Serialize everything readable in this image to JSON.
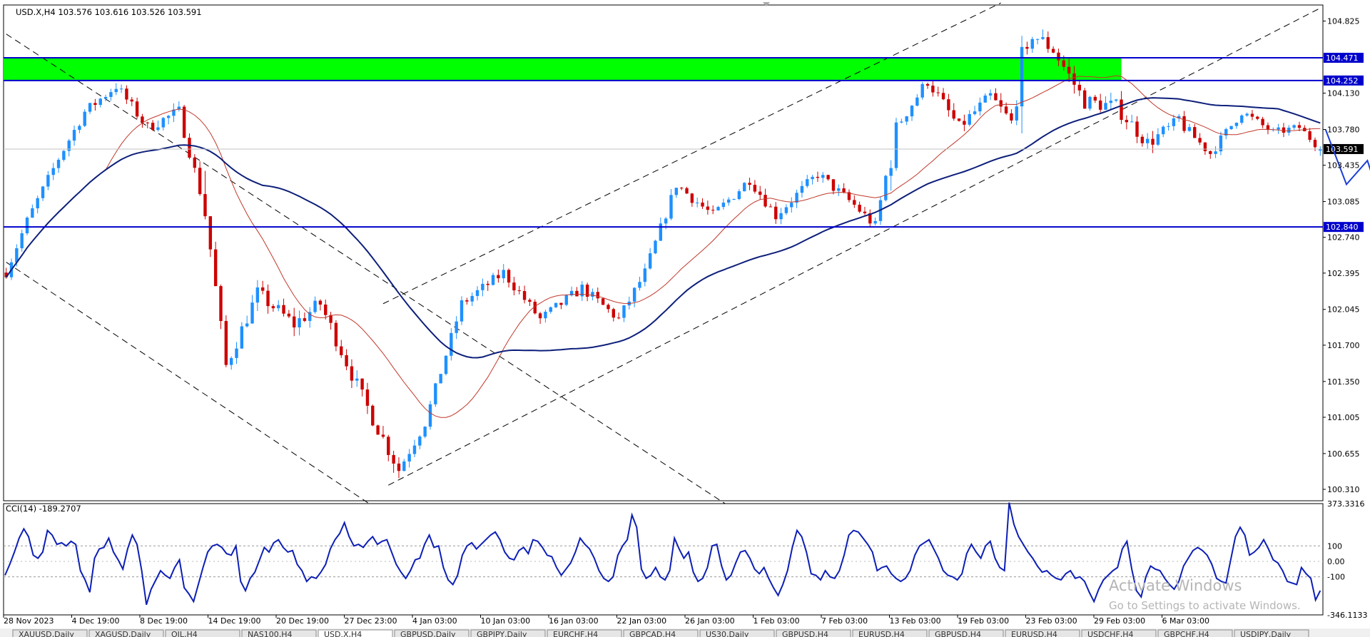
{
  "header": {
    "symbol_line": "USD.X,H4  103.576 103.616 103.526 103.591",
    "cci_label": "CCI(14) -189.2707"
  },
  "colors": {
    "bull": "#1e90ff",
    "bear": "#cc0000",
    "ma_fast": "#c0392b",
    "ma_slow": "#0d1f7a",
    "zone": "#00ff00",
    "level_line": "#0000cc",
    "cci": "#0d1fb5",
    "channel": "#000000"
  },
  "watermark": {
    "line1": "Activate Windows",
    "line2": "Go to Settings to activate Windows."
  },
  "tabs": [
    "XAUUSD,Daily",
    "XAGUSD,Daily",
    "OIL,H4",
    "NAS100,H4",
    "USD.X,H4",
    "GBPUSD,Daily",
    "GBPJPY,Daily",
    "EURCHF,H4",
    "GBPCAD,H4",
    "US30,Daily",
    "GBPUSD,H4",
    "EURUSD,H4",
    "GBPUSD,H4",
    "EURUSD,H4",
    "USDCHF,H4",
    "GBPCHF,H4",
    "USDJPY,Daily"
  ],
  "active_tab": 4,
  "chart_data": [
    {
      "type": "candlestick",
      "symbol": "USD.X",
      "timeframe": "H4",
      "ohlc_current": {
        "open": 103.576,
        "high": 103.616,
        "low": 103.526,
        "close": 103.591
      },
      "ylim": [
        100.2,
        104.98
      ],
      "y_ticks": [
        "104.825",
        "104.130",
        "103.780",
        "103.435",
        "103.085",
        "102.740",
        "102.395",
        "102.045",
        "101.700",
        "101.350",
        "101.005",
        "100.655",
        "100.310"
      ],
      "x_ticks": [
        "28 Nov 2023",
        "4 Dec 19:00",
        "8 Dec 19:00",
        "14 Dec 19:00",
        "20 Dec 19:00",
        "27 Dec 23:00",
        "4 Jan 03:00",
        "10 Jan 03:00",
        "16 Jan 03:00",
        "22 Jan 03:00",
        "26 Jan 03:00",
        "1 Feb 03:00",
        "7 Feb 03:00",
        "13 Feb 03:00",
        "19 Feb 03:00",
        "23 Feb 03:00",
        "29 Feb 03:00",
        "6 Mar 03:00"
      ],
      "price_path": [
        [
          0,
          102.4
        ],
        [
          4,
          102.9
        ],
        [
          10,
          103.5
        ],
        [
          15,
          103.95
        ],
        [
          21,
          104.2
        ],
        [
          27,
          103.8
        ],
        [
          33,
          103.95
        ],
        [
          38,
          103.0
        ],
        [
          42,
          101.5
        ],
        [
          48,
          102.2
        ],
        [
          55,
          101.9
        ],
        [
          60,
          102.1
        ],
        [
          68,
          101.2
        ],
        [
          75,
          100.5
        ],
        [
          80,
          100.95
        ],
        [
          87,
          102.1
        ],
        [
          95,
          102.4
        ],
        [
          102,
          101.95
        ],
        [
          110,
          102.25
        ],
        [
          117,
          101.95
        ],
        [
          122,
          102.4
        ],
        [
          128,
          103.25
        ],
        [
          135,
          102.95
        ],
        [
          142,
          103.3
        ],
        [
          147,
          102.95
        ],
        [
          155,
          103.35
        ],
        [
          162,
          103.05
        ],
        [
          166,
          102.85
        ],
        [
          170,
          103.8
        ],
        [
          176,
          104.25
        ],
        [
          182,
          103.8
        ],
        [
          188,
          104.1
        ],
        [
          192,
          103.85
        ],
        [
          196,
          104.7
        ],
        [
          200,
          104.55
        ],
        [
          206,
          104.05
        ],
        [
          212,
          104.0
        ],
        [
          218,
          103.65
        ],
        [
          224,
          103.85
        ],
        [
          230,
          103.55
        ],
        [
          236,
          103.95
        ],
        [
          242,
          103.75
        ],
        [
          247,
          103.8
        ],
        [
          251,
          103.591
        ]
      ],
      "volatility": [
        [
          0,
          0.1
        ],
        [
          37,
          0.14
        ],
        [
          38,
          0.5
        ],
        [
          39,
          0.16
        ],
        [
          75,
          0.18
        ],
        [
          76,
          0.12
        ],
        [
          168,
          0.12
        ],
        [
          169,
          0.45
        ],
        [
          170,
          0.14
        ],
        [
          193,
          0.14
        ],
        [
          194,
          0.7
        ],
        [
          195,
          0.18
        ],
        [
          223,
          0.16
        ],
        [
          224,
          0.4
        ],
        [
          225,
          0.12
        ],
        [
          251,
          0.08
        ]
      ],
      "series": [
        {
          "name": "",
          "type": "ma",
          "color_key": "ma_fast",
          "period": 20
        },
        {
          "name": "",
          "type": "ma",
          "color_key": "ma_slow",
          "period": 50
        }
      ],
      "levels": [
        {
          "label": "104.471",
          "value": 104.471
        },
        {
          "label": "104.252",
          "value": 104.252
        },
        {
          "label": "102.840",
          "value": 102.84
        }
      ],
      "zone": {
        "from": 104.252,
        "to": 104.471,
        "end_bar": 213
      },
      "current_price_label": "103.591",
      "channels": [
        {
          "from": [
            0,
            104.7
          ],
          "to": [
            138,
            100.15
          ]
        },
        {
          "from": [
            0,
            102.5
          ],
          "to": [
            70,
            100.15
          ]
        },
        {
          "from": [
            72,
            102.1
          ],
          "to": [
            190,
            105.0
          ]
        },
        {
          "from": [
            73,
            100.35
          ],
          "to": [
            251,
            104.95
          ]
        }
      ],
      "projection": [
        [
          252,
          103.78
        ],
        [
          256,
          103.25
        ],
        [
          260,
          103.48
        ],
        [
          264,
          102.85
        ]
      ]
    },
    {
      "type": "line",
      "name": "CCI(14)",
      "value_current": -189.2707,
      "ylim": [
        -346.1133,
        373.3316
      ],
      "y_ticks": [
        "373.3316",
        "100",
        "0.00",
        "-100",
        "-346.1133"
      ],
      "levels": [
        100,
        -100
      ],
      "values": [
        -90,
        -20,
        60,
        150,
        210,
        160,
        40,
        20,
        60,
        200,
        170,
        110,
        120,
        100,
        130,
        110,
        -60,
        -120,
        -200,
        20,
        80,
        90,
        150,
        60,
        10,
        -50,
        80,
        170,
        110,
        -60,
        -280,
        -180,
        -120,
        -60,
        -90,
        -110,
        -40,
        10,
        -170,
        -210,
        -260,
        -150,
        -40,
        60,
        100,
        110,
        90,
        50,
        40,
        100,
        -130,
        -190,
        -110,
        -70,
        10,
        90,
        60,
        120,
        140,
        90,
        60,
        70,
        -20,
        -60,
        -130,
        -100,
        -110,
        -70,
        -20,
        80,
        140,
        180,
        250,
        160,
        100,
        110,
        90,
        130,
        160,
        110,
        130,
        140,
        60,
        -20,
        -70,
        -110,
        -60,
        10,
        20,
        110,
        170,
        90,
        100,
        -40,
        -120,
        -150,
        -90,
        40,
        100,
        120,
        80,
        110,
        140,
        170,
        190,
        140,
        60,
        20,
        10,
        70,
        90,
        50,
        140,
        130,
        90,
        40,
        30,
        -40,
        -90,
        -50,
        -10,
        60,
        150,
        110,
        80,
        20,
        -60,
        -110,
        -130,
        -100,
        40,
        100,
        140,
        300,
        220,
        -50,
        -110,
        -90,
        -40,
        -100,
        -120,
        -60,
        150,
        80,
        20,
        60,
        -70,
        -130,
        -110,
        -40,
        100,
        110,
        -30,
        -120,
        -90,
        -10,
        60,
        70,
        20,
        -50,
        -80,
        -40,
        -110,
        -170,
        -220,
        -150,
        -60,
        90,
        200,
        160,
        60,
        -80,
        -90,
        -120,
        -60,
        -100,
        -110,
        -60,
        40,
        170,
        200,
        190,
        150,
        110,
        60,
        -60,
        -40,
        -30,
        -80,
        -110,
        -130,
        -110,
        -60,
        40,
        100,
        120,
        140,
        80,
        20,
        -60,
        -90,
        -100,
        -120,
        -80,
        50,
        110,
        60,
        20,
        100,
        130,
        20,
        -40,
        -60,
        380,
        240,
        160,
        110,
        60,
        20,
        -30,
        -70,
        -60,
        -90,
        -110,
        -120,
        -80,
        -60,
        -110,
        -100,
        -130,
        -200,
        -260,
        -180,
        -120,
        -90,
        -60,
        -40,
        80,
        130,
        -50,
        -190,
        -230,
        -100,
        -30,
        -50,
        -60,
        -110,
        -150,
        -180,
        -130,
        -30,
        20,
        70,
        90,
        70,
        40,
        -20,
        -110,
        -130,
        -140,
        10,
        160,
        220,
        170,
        40,
        60,
        90,
        140,
        80,
        10,
        -10,
        -60,
        -130,
        -140,
        -150,
        -40,
        -80,
        -110,
        -250,
        -189.27
      ]
    }
  ]
}
